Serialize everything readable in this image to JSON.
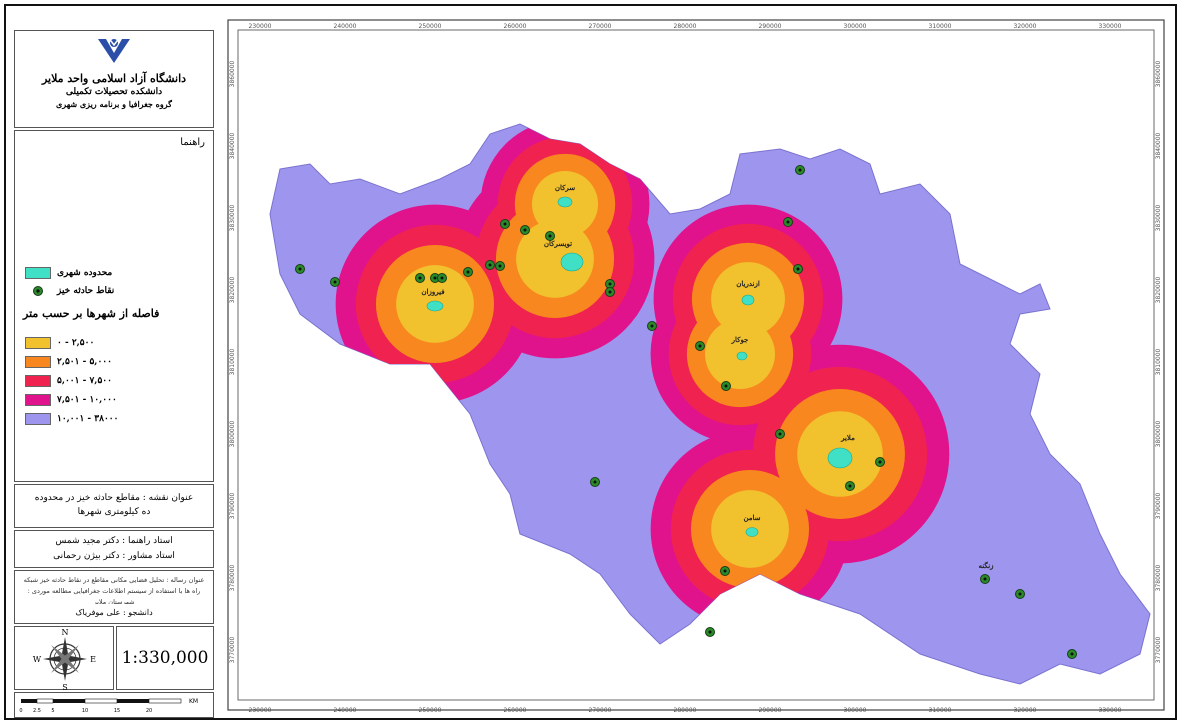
{
  "header": {
    "university": "دانشگاه آزاد اسلامی واحد ملایر",
    "school": "دانشکده تحصیلات تکمیلی",
    "department": "گروه جغرافیا و برنامه ریزی شهری"
  },
  "legend": {
    "heading": "راهنما",
    "urban_area": "محدوده شهری",
    "accident_points": "نقاط حادثه خیز",
    "distance_title": "فاصله از شهرها بر حسب متر",
    "classes": [
      {
        "label": "۰ - ۲,۵۰۰",
        "color": "#f2c12e"
      },
      {
        "label": "۲,۵۰۱ - ۵,۰۰۰",
        "color": "#f7871e"
      },
      {
        "label": "۵,۰۰۱ - ۷,۵۰۰",
        "color": "#f0224f"
      },
      {
        "label": "۷,۵۰۱ - ۱۰,۰۰۰",
        "color": "#e0138c"
      },
      {
        "label": "۱۰,۰۰۱ - ۳۸۰۰۰",
        "color": "#9e96ee"
      }
    ],
    "urban_color": "#3fe0c5",
    "accident_color": "#2a8a2a"
  },
  "map_title": {
    "line1": "عنوان نقشه : مقاطع حادثه خیز در محدوده",
    "line2": "ده کیلومتری شهرها"
  },
  "advisors": {
    "supervisor": "استاد راهنما : دکتر مجید شمس",
    "consultant": "استاد مشاور : دکتر بیژن رحمانی"
  },
  "description": {
    "text": "عنوان رساله : تحلیل فضایی مکانی مقاطع در نقاط حادثه خیز شبکه راه ها با استفاده از سیستم اطلاعات جغرافیایی مطالعه موردی : شهرستان ملایر"
  },
  "student": "دانشجو : علی موفریاک",
  "scale": "1:330,000",
  "compass": {
    "n": "N",
    "s": "S",
    "e": "E",
    "w": "W"
  },
  "scalebar": {
    "unit": "KM",
    "ticks": [
      "0",
      "2.5",
      "5",
      "10",
      "15",
      "20"
    ]
  },
  "axes": {
    "x_ticks": [
      "230000",
      "240000",
      "250000",
      "260000",
      "270000",
      "280000",
      "290000",
      "300000",
      "310000",
      "320000",
      "330000"
    ],
    "y_ticks": [
      "3860000",
      "3840000",
      "3830000",
      "3820000",
      "3810000",
      "3800000",
      "3790000",
      "3780000",
      "3770000"
    ]
  },
  "cities": [
    {
      "name": "سرکان"
    },
    {
      "name": "تویسرکان"
    },
    {
      "name": "فیروزان"
    },
    {
      "name": "ازندریان"
    },
    {
      "name": "جوکار"
    },
    {
      "name": "ملایر"
    },
    {
      "name": "سامن"
    },
    {
      "name": "زنگنه"
    }
  ]
}
